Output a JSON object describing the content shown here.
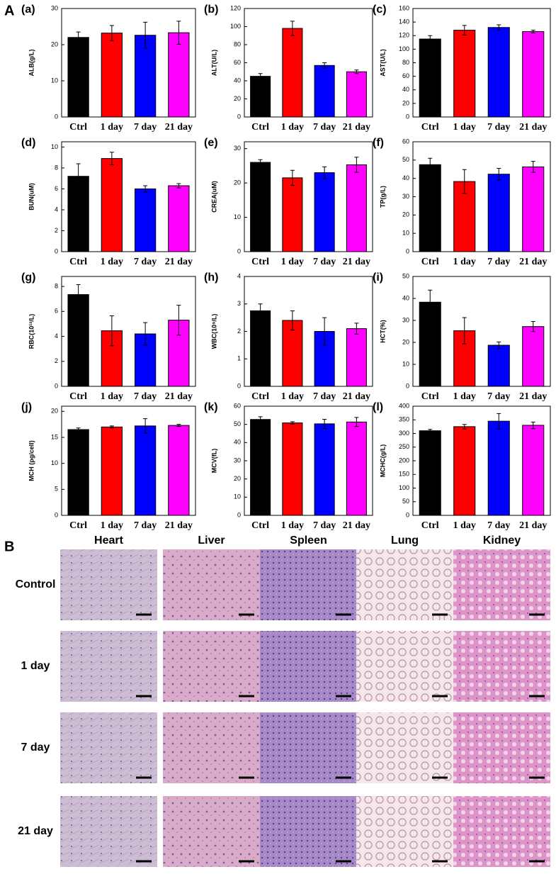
{
  "figure_labels": {
    "A": "A",
    "B": "B"
  },
  "chart_data": [
    {
      "type": "bar",
      "panel": "(a)",
      "ylabel": "ALB(g/L)",
      "categories": [
        "Ctrl",
        "1 day",
        "7 day",
        "21 day"
      ],
      "values": [
        22,
        23.2,
        22.6,
        23.3
      ],
      "errors": [
        1.5,
        2.1,
        3.6,
        3.2
      ],
      "colors": [
        "#000000",
        "#ff0000",
        "#0000ff",
        "#ff00ff"
      ],
      "ylim": [
        0,
        30
      ],
      "yticks": [
        0,
        10,
        20,
        30
      ]
    },
    {
      "type": "bar",
      "panel": "(b)",
      "ylabel": "ALT(U/L)",
      "categories": [
        "Ctrl",
        "1 day",
        "7 day",
        "21 day"
      ],
      "values": [
        45,
        98,
        57,
        50
      ],
      "errors": [
        3,
        8,
        3,
        2
      ],
      "colors": [
        "#000000",
        "#ff0000",
        "#0000ff",
        "#ff00ff"
      ],
      "ylim": [
        0,
        120
      ],
      "yticks": [
        0,
        20,
        40,
        60,
        80,
        100,
        120
      ]
    },
    {
      "type": "bar",
      "panel": "(c)",
      "ylabel": "AST(U/L)",
      "categories": [
        "Ctrl",
        "1 day",
        "7 day",
        "21 day"
      ],
      "values": [
        115,
        128,
        132,
        126
      ],
      "errors": [
        5,
        7,
        4,
        2
      ],
      "colors": [
        "#000000",
        "#ff0000",
        "#0000ff",
        "#ff00ff"
      ],
      "ylim": [
        0,
        160
      ],
      "yticks": [
        0,
        20,
        40,
        60,
        80,
        100,
        120,
        140,
        160
      ]
    },
    {
      "type": "bar",
      "panel": "(d)",
      "ylabel": "BUN(uM)",
      "categories": [
        "Ctrl",
        "1 day",
        "7 day",
        "21 day"
      ],
      "values": [
        7.2,
        8.9,
        6.0,
        6.3
      ],
      "errors": [
        1.2,
        0.6,
        0.3,
        0.2
      ],
      "colors": [
        "#000000",
        "#ff0000",
        "#0000ff",
        "#ff00ff"
      ],
      "ylim": [
        0,
        10.5
      ],
      "yticks": [
        0,
        2,
        4,
        6,
        8,
        10
      ]
    },
    {
      "type": "bar",
      "panel": "(e)",
      "ylabel": "CREA(uM)",
      "categories": [
        "Ctrl",
        "1 day",
        "7 day",
        "21 day"
      ],
      "values": [
        26,
        21.5,
        23,
        25.3
      ],
      "errors": [
        0.8,
        2.2,
        1.7,
        2.2
      ],
      "colors": [
        "#000000",
        "#ff0000",
        "#0000ff",
        "#ff00ff"
      ],
      "ylim": [
        0,
        32
      ],
      "yticks": [
        0,
        10,
        20,
        30
      ]
    },
    {
      "type": "bar",
      "panel": "(f)",
      "ylabel": "TP(g/L)",
      "categories": [
        "Ctrl",
        "1 day",
        "7 day",
        "21 day"
      ],
      "values": [
        47.5,
        38.3,
        42.3,
        46.3
      ],
      "errors": [
        3.5,
        6.5,
        3.2,
        3
      ],
      "colors": [
        "#000000",
        "#ff0000",
        "#0000ff",
        "#ff00ff"
      ],
      "ylim": [
        0,
        60
      ],
      "yticks": [
        0,
        10,
        20,
        30,
        40,
        50,
        60
      ]
    },
    {
      "type": "bar",
      "panel": "(g)",
      "ylabel": "RBC(10¹²/L)",
      "categories": [
        "Ctrl",
        "1 day",
        "7 day",
        "21 day"
      ],
      "values": [
        7.35,
        4.45,
        4.2,
        5.3
      ],
      "errors": [
        0.8,
        1.2,
        0.9,
        1.2
      ],
      "colors": [
        "#000000",
        "#ff0000",
        "#0000ff",
        "#ff00ff"
      ],
      "ylim": [
        0,
        8.8
      ],
      "yticks": [
        0,
        2,
        4,
        6,
        8
      ]
    },
    {
      "type": "bar",
      "panel": "(h)",
      "ylabel": "WBC(10⁹/L)",
      "categories": [
        "Ctrl",
        "1 day",
        "7 day",
        "21 day"
      ],
      "values": [
        2.75,
        2.4,
        2.0,
        2.1
      ],
      "errors": [
        0.25,
        0.35,
        0.5,
        0.2
      ],
      "colors": [
        "#000000",
        "#ff0000",
        "#0000ff",
        "#ff00ff"
      ],
      "ylim": [
        0,
        4
      ],
      "yticks": [
        0,
        1,
        2,
        3,
        4
      ]
    },
    {
      "type": "bar",
      "panel": "(i)",
      "ylabel": "HCT(%)",
      "categories": [
        "Ctrl",
        "1 day",
        "7 day",
        "21 day"
      ],
      "values": [
        38.3,
        25.3,
        18.7,
        27.2
      ],
      "errors": [
        5.5,
        6,
        1.5,
        2.3
      ],
      "colors": [
        "#000000",
        "#ff0000",
        "#0000ff",
        "#ff00ff"
      ],
      "ylim": [
        0,
        50
      ],
      "yticks": [
        0,
        10,
        20,
        30,
        40,
        50
      ]
    },
    {
      "type": "bar",
      "panel": "(j)",
      "ylabel": "MCH (pg/cell)",
      "categories": [
        "Ctrl",
        "1 day",
        "7 day",
        "21 day"
      ],
      "values": [
        16.5,
        17,
        17.2,
        17.3
      ],
      "errors": [
        0.3,
        0.2,
        1.4,
        0.2
      ],
      "colors": [
        "#000000",
        "#ff0000",
        "#0000ff",
        "#ff00ff"
      ],
      "ylim": [
        0,
        21
      ],
      "yticks": [
        0,
        5,
        10,
        15,
        20
      ]
    },
    {
      "type": "bar",
      "panel": "(k)",
      "ylabel": "MCV(fL)",
      "categories": [
        "Ctrl",
        "1 day",
        "7 day",
        "21 day"
      ],
      "values": [
        52.7,
        50.8,
        50.3,
        51.3
      ],
      "errors": [
        1.5,
        0.7,
        2.5,
        2.5
      ],
      "colors": [
        "#000000",
        "#ff0000",
        "#0000ff",
        "#ff00ff"
      ],
      "ylim": [
        0,
        60
      ],
      "yticks": [
        0,
        10,
        20,
        30,
        40,
        50,
        60
      ]
    },
    {
      "type": "bar",
      "panel": "(l)",
      "ylabel": "MCHC(g/L)",
      "categories": [
        "Ctrl",
        "1 day",
        "7 day",
        "21 day"
      ],
      "values": [
        310,
        325,
        345,
        330
      ],
      "errors": [
        5,
        8,
        28,
        12
      ],
      "colors": [
        "#000000",
        "#ff0000",
        "#0000ff",
        "#ff00ff"
      ],
      "ylim": [
        0,
        400
      ],
      "yticks": [
        0,
        50,
        100,
        150,
        200,
        250,
        300,
        350,
        400
      ]
    }
  ],
  "histology": {
    "columns": [
      "Heart",
      "Liver",
      "Spleen",
      "Lung",
      "Kidney"
    ],
    "rows": [
      "Control",
      "1 day",
      "7 day",
      "21 day"
    ]
  }
}
